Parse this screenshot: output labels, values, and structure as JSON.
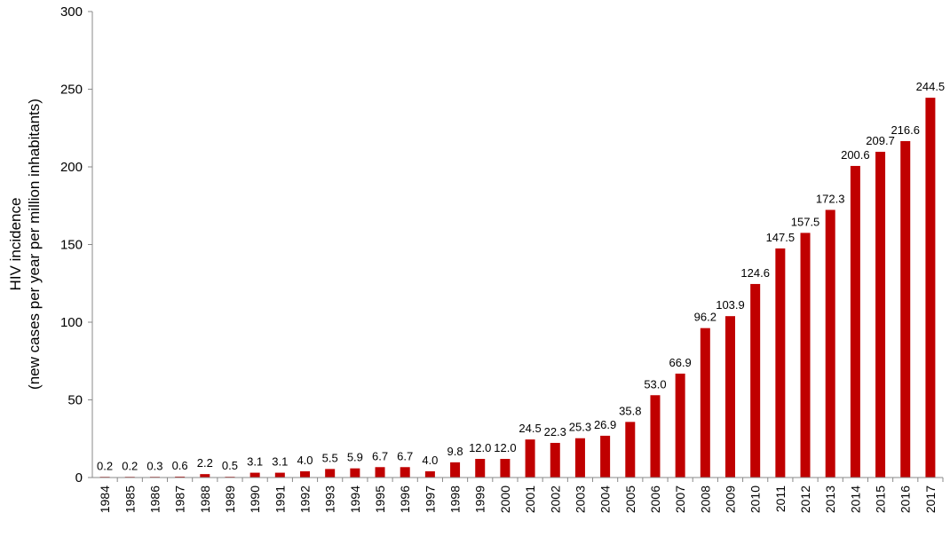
{
  "chart_data": {
    "type": "bar",
    "title": "",
    "xlabel": "",
    "ylabel_line1": "HIV incidence",
    "ylabel_line2": "(new cases per year per million inhabitants)",
    "ylim": [
      0,
      300
    ],
    "yticks": [
      0,
      50,
      100,
      150,
      200,
      250,
      300
    ],
    "grid": false,
    "bar_color": "#C00000",
    "categories": [
      "1984",
      "1985",
      "1986",
      "1987",
      "1988",
      "1989",
      "1990",
      "1991",
      "1992",
      "1993",
      "1994",
      "1995",
      "1996",
      "1997",
      "1998",
      "1999",
      "2000",
      "2001",
      "2002",
      "2003",
      "2004",
      "2005",
      "2006",
      "2007",
      "2008",
      "2009",
      "2010",
      "2011",
      "2012",
      "2013",
      "2014",
      "2015",
      "2016",
      "2017"
    ],
    "values": [
      0.2,
      0.2,
      0.3,
      0.6,
      2.2,
      0.5,
      3.1,
      3.1,
      4.0,
      5.5,
      5.9,
      6.7,
      6.7,
      4.0,
      9.8,
      12.0,
      12.0,
      24.5,
      22.3,
      25.3,
      26.9,
      35.8,
      53.0,
      66.9,
      96.2,
      103.9,
      124.6,
      147.5,
      157.5,
      172.3,
      200.6,
      209.7,
      216.6,
      244.5
    ],
    "value_labels": [
      "0.2",
      "0.2",
      "0.3",
      "0.6",
      "2.2",
      "0.5",
      "3.1",
      "3.1",
      "4.0",
      "5.5",
      "5.9",
      "6.7",
      "6.7",
      "4.0",
      "9.8",
      "12.0",
      "12.0",
      "24.5",
      "22.3",
      "25.3",
      "26.9",
      "35.8",
      "53.0",
      "66.9",
      "96.2",
      "103.9",
      "124.6",
      "147.5",
      "157.5",
      "172.3",
      "200.6",
      "209.7",
      "216.6",
      "244.5"
    ]
  }
}
